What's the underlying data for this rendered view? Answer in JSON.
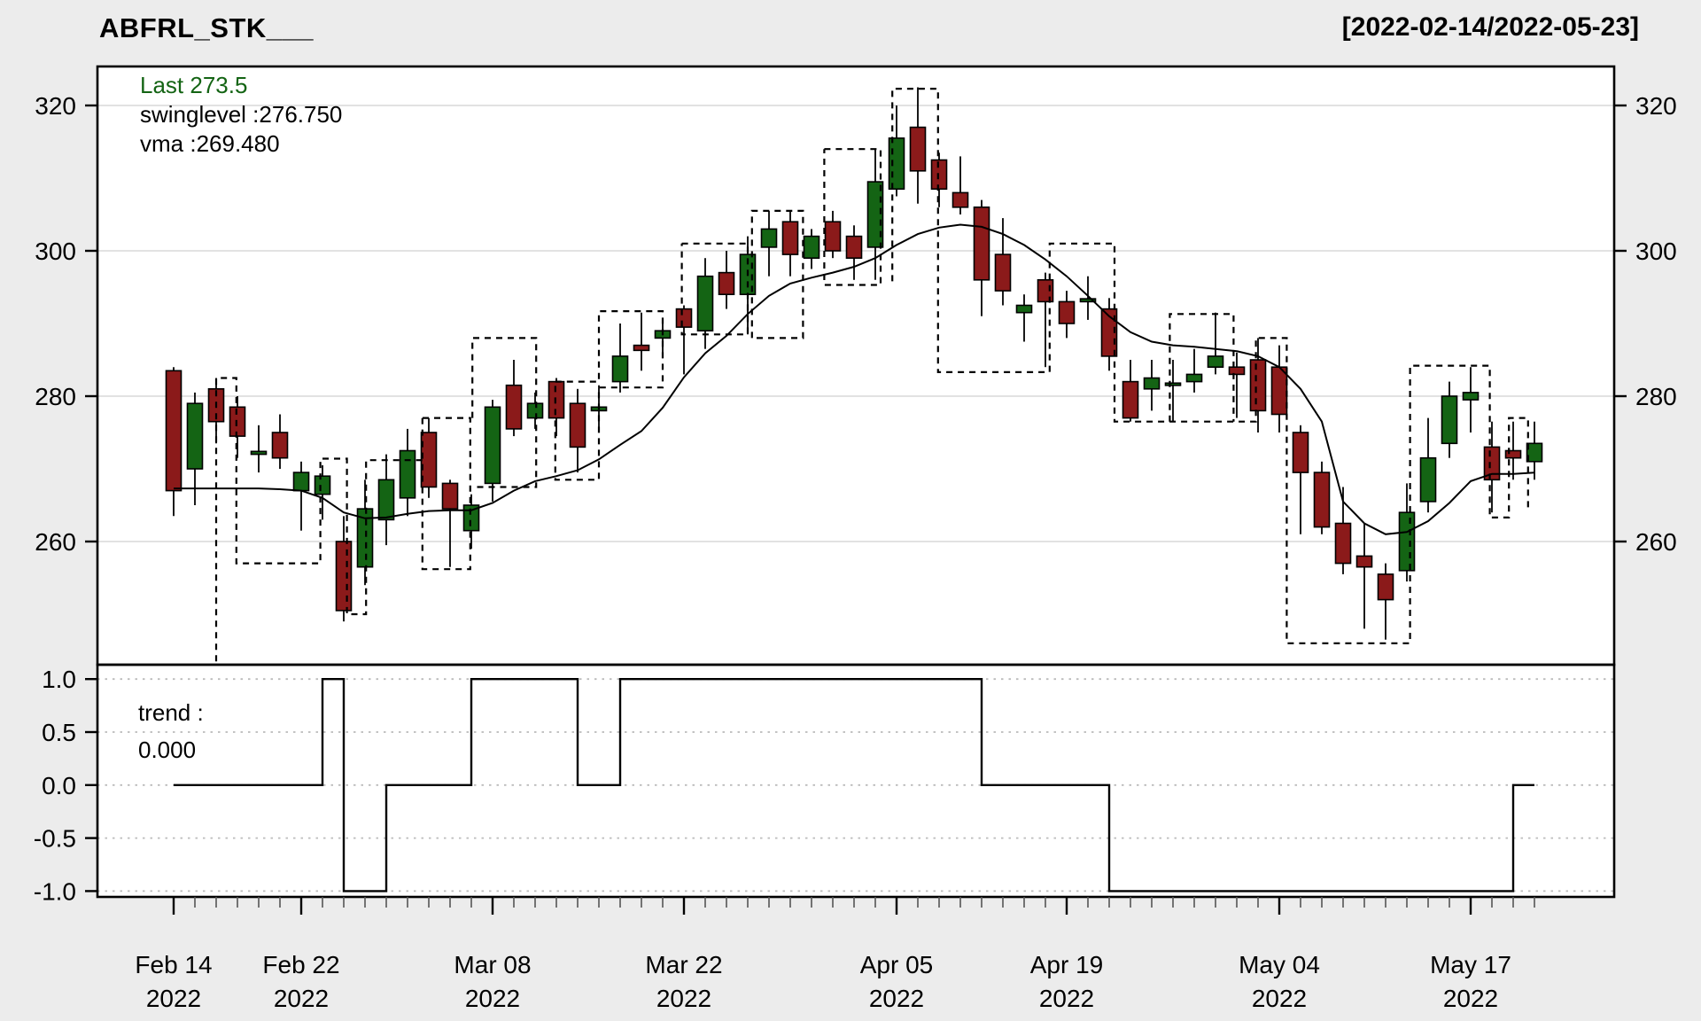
{
  "window": {
    "title": "ABFRL_STK___",
    "range_label": "[2022-02-14/2022-05-23]"
  },
  "legend": {
    "last": "Last 273.5",
    "swinglevel": "swinglevel :276.750",
    "vma": "vma :269.480"
  },
  "trend_label": {
    "line1": "trend :",
    "line2": "0.000"
  },
  "colors": {
    "background": "#ECECEC",
    "plot_bg": "#FFFFFF",
    "up": "#146414",
    "down": "#8B1A1A",
    "line": "#000000",
    "grid_main": "#D8D8D8",
    "grid_trend": "#BBBBBB",
    "legend_green": "#146414"
  },
  "chart_data": {
    "type": "candlestick",
    "title": "ABFRL_STK___",
    "subtitle": "[2022-02-14/2022-05-23]",
    "grid": true,
    "legend_position": "top-left",
    "panels": [
      {
        "name": "price",
        "ylabel": "",
        "ylim": [
          243,
          325.4
        ],
        "y_ticks": [
          260,
          280,
          300,
          320
        ]
      },
      {
        "name": "trend",
        "ylabel": "",
        "ylim": [
          -1.1,
          1.13
        ],
        "y_ticks": [
          {
            "v": 1,
            "label": "1.0"
          },
          {
            "v": 0.5,
            "label": "0.5"
          },
          {
            "v": 0,
            "label": "0.0"
          },
          {
            "v": -0.5,
            "label": "-0.5"
          },
          {
            "v": -1,
            "label": "-1.0"
          }
        ]
      }
    ],
    "x_labels": [
      {
        "i": 0,
        "line1": "Feb 14",
        "line2": "2022"
      },
      {
        "i": 6,
        "line1": "Feb 22",
        "line2": "2022"
      },
      {
        "i": 15,
        "line1": "Mar 08",
        "line2": "2022"
      },
      {
        "i": 24,
        "line1": "Mar 22",
        "line2": "2022"
      },
      {
        "i": 34,
        "line1": "Apr 05",
        "line2": "2022"
      },
      {
        "i": 42,
        "line1": "Apr 19",
        "line2": "2022"
      },
      {
        "i": 52,
        "line1": "May 04",
        "line2": "2022"
      },
      {
        "i": 61,
        "line1": "May 17",
        "line2": "2022"
      }
    ],
    "candles_ohlc": [
      [
        283.5,
        284,
        263.5,
        267
      ],
      [
        270,
        280.5,
        265,
        279
      ],
      [
        281,
        282.5,
        273.5,
        276.5
      ],
      [
        278.5,
        280,
        271.5,
        274.5
      ],
      [
        272,
        276,
        269.5,
        272.4
      ],
      [
        275,
        277.5,
        270,
        271.5
      ],
      [
        267,
        271,
        261.5,
        269.5
      ],
      [
        266.5,
        270.5,
        263,
        269
      ],
      [
        260,
        263.5,
        249,
        250.5
      ],
      [
        256.5,
        268.5,
        254,
        264.5
      ],
      [
        263,
        272,
        259.5,
        268.5
      ],
      [
        266,
        275.5,
        263.5,
        272.5
      ],
      [
        275,
        277,
        266,
        267.5
      ],
      [
        268,
        268.5,
        256.5,
        264.5
      ],
      [
        261.5,
        266.5,
        259,
        265
      ],
      [
        268,
        279.5,
        265.5,
        278.5
      ],
      [
        281.5,
        285,
        274.5,
        275.5
      ],
      [
        277,
        280.5,
        275.5,
        279
      ],
      [
        282,
        282.5,
        274.5,
        277
      ],
      [
        279,
        281,
        269.5,
        273
      ],
      [
        278,
        281.5,
        275.5,
        278.5
      ],
      [
        282,
        290,
        280.5,
        285.5
      ],
      [
        287,
        291.5,
        283.5,
        286.3
      ],
      [
        288,
        290,
        286,
        289
      ],
      [
        292,
        292.5,
        283,
        289.5
      ],
      [
        289,
        299,
        286.5,
        296.5
      ],
      [
        297,
        300,
        292,
        294
      ],
      [
        294,
        302,
        288.5,
        299.5
      ],
      [
        300.5,
        305.5,
        296.5,
        303
      ],
      [
        304,
        305.5,
        296.5,
        299.5
      ],
      [
        299,
        303,
        297.5,
        302
      ],
      [
        304,
        305.5,
        299,
        300
      ],
      [
        302,
        303.5,
        296,
        299
      ],
      [
        300.5,
        314,
        296,
        309.5
      ],
      [
        308.5,
        320,
        307.5,
        315.5
      ],
      [
        317,
        322.5,
        306.5,
        311
      ],
      [
        312.5,
        313.5,
        306,
        308.5
      ],
      [
        308,
        313,
        305,
        306
      ],
      [
        306,
        307,
        291,
        296
      ],
      [
        299.5,
        304.5,
        292.5,
        294.5
      ],
      [
        291.5,
        294,
        287.5,
        292.5
      ],
      [
        296,
        297,
        284,
        293
      ],
      [
        293,
        294.5,
        288,
        290
      ],
      [
        293,
        296.5,
        290.5,
        293.4
      ],
      [
        292,
        293.5,
        283.5,
        285.5
      ],
      [
        282,
        285,
        276.5,
        277
      ],
      [
        281,
        285,
        278,
        282.5
      ],
      [
        281.5,
        285,
        276.5,
        281.8
      ],
      [
        282,
        286.5,
        280.5,
        283
      ],
      [
        284,
        291.5,
        283,
        285.5
      ],
      [
        284,
        286,
        277,
        283
      ],
      [
        285,
        288,
        275,
        278
      ],
      [
        284,
        287,
        275,
        277.5
      ],
      [
        275,
        276,
        261,
        269.5
      ],
      [
        269.5,
        271,
        261,
        262
      ],
      [
        262.5,
        267.5,
        255.5,
        257
      ],
      [
        258,
        262.5,
        248,
        256.5
      ],
      [
        255.5,
        257,
        246.5,
        252
      ],
      [
        256,
        268,
        254.5,
        264
      ],
      [
        265.5,
        277,
        264,
        271.5
      ],
      [
        273.5,
        282,
        271.5,
        280
      ],
      [
        279.5,
        284,
        275,
        280.5
      ],
      [
        273,
        276.5,
        264,
        268.5
      ],
      [
        272.5,
        276.5,
        268.5,
        271.5
      ],
      [
        271,
        276.5,
        268.5,
        273.5
      ]
    ],
    "vma": [
      267.3,
      267.3,
      267.3,
      267.3,
      267.3,
      267.2,
      267.0,
      266.0,
      264.0,
      263.2,
      263.3,
      263.8,
      264.2,
      264.3,
      264.3,
      265.3,
      267.0,
      268.3,
      269.0,
      269.8,
      271.3,
      273.3,
      275.2,
      278.4,
      282.6,
      285.9,
      288.3,
      291.3,
      293.8,
      295.5,
      296.3,
      297.0,
      297.8,
      299.0,
      300.8,
      302.3,
      303.2,
      303.6,
      303.3,
      302.3,
      300.8,
      298.8,
      296.5,
      293.8,
      291.0,
      288.8,
      287.5,
      287.0,
      286.8,
      286.5,
      286.2,
      285.5,
      284.0,
      281.0,
      276.5,
      265.5,
      262.5,
      261.0,
      261.3,
      262.8,
      265.3,
      268.3,
      269.3,
      269.3,
      269.48
    ],
    "trend": [
      0,
      0,
      0,
      0,
      0,
      0,
      0,
      1,
      -1,
      -1,
      0,
      0,
      0,
      0,
      1,
      1,
      1,
      1,
      1,
      0,
      0,
      1,
      1,
      1,
      1,
      1,
      1,
      1,
      1,
      1,
      1,
      1,
      1,
      1,
      1,
      1,
      1,
      1,
      0,
      0,
      0,
      0,
      0,
      0,
      -1,
      -1,
      -1,
      -1,
      -1,
      -1,
      -1,
      -1,
      -1,
      -1,
      -1,
      -1,
      -1,
      -1,
      -1,
      -1,
      -1,
      -1,
      -1,
      0,
      0
    ],
    "swing_paths": [
      [
        [
          2,
          243.5
        ],
        [
          2,
          282.5
        ],
        [
          2.95,
          282.5
        ],
        [
          2.95,
          257
        ],
        [
          6.9,
          257
        ],
        [
          6.9,
          271.4
        ],
        [
          8.15,
          271.4
        ],
        [
          8.15,
          250
        ],
        [
          9.05,
          250
        ],
        [
          9.05,
          271.2
        ],
        [
          11.7,
          271.2
        ]
      ],
      [
        [
          11.7,
          277
        ],
        [
          11.7,
          256.2
        ],
        [
          13.95,
          256.2
        ],
        [
          13.95,
          277
        ],
        [
          11.7,
          277
        ]
      ],
      [
        [
          14.05,
          277
        ],
        [
          14.05,
          288
        ],
        [
          17.05,
          288
        ],
        [
          17.05,
          267.5
        ],
        [
          14.05,
          267.5
        ]
      ],
      [
        [
          17.95,
          282
        ],
        [
          20,
          282
        ],
        [
          20,
          291.7
        ],
        [
          23,
          291.7
        ],
        [
          23,
          281.2
        ],
        [
          20,
          281.2
        ],
        [
          20,
          268.5
        ],
        [
          17.95,
          268.5
        ],
        [
          17.95,
          282
        ]
      ],
      [
        [
          23.9,
          301
        ],
        [
          27,
          301
        ],
        [
          27,
          288.5
        ],
        [
          23.9,
          288.5
        ],
        [
          23.9,
          301
        ]
      ],
      [
        [
          27.2,
          288
        ],
        [
          27.2,
          305.5
        ],
        [
          29.6,
          305.5
        ],
        [
          29.6,
          288
        ],
        [
          27.2,
          288
        ]
      ],
      [
        [
          30.6,
          314
        ],
        [
          33.25,
          314
        ],
        [
          33.25,
          295.3
        ],
        [
          30.6,
          295.3
        ],
        [
          30.6,
          314
        ]
      ],
      [
        [
          33.8,
          295.8
        ],
        [
          33.8,
          322.3
        ],
        [
          35.95,
          322.3
        ],
        [
          35.95,
          283.3
        ],
        [
          41.2,
          283.3
        ],
        [
          41.2,
          301
        ],
        [
          44.25,
          301
        ],
        [
          44.25,
          276.5
        ],
        [
          50.9,
          276.5
        ],
        [
          50.9,
          288
        ],
        [
          52.35,
          288
        ],
        [
          52.35,
          246
        ],
        [
          58.15,
          246
        ],
        [
          58.15,
          284.2
        ],
        [
          61.9,
          284.2
        ],
        [
          61.9,
          263.3
        ],
        [
          62.8,
          263.3
        ],
        [
          62.8,
          277
        ],
        [
          63.7,
          277
        ],
        [
          63.7,
          264
        ]
      ],
      [
        [
          46.85,
          276.5
        ],
        [
          46.85,
          291.3
        ],
        [
          49.85,
          291.3
        ],
        [
          49.85,
          276.5
        ]
      ]
    ]
  }
}
